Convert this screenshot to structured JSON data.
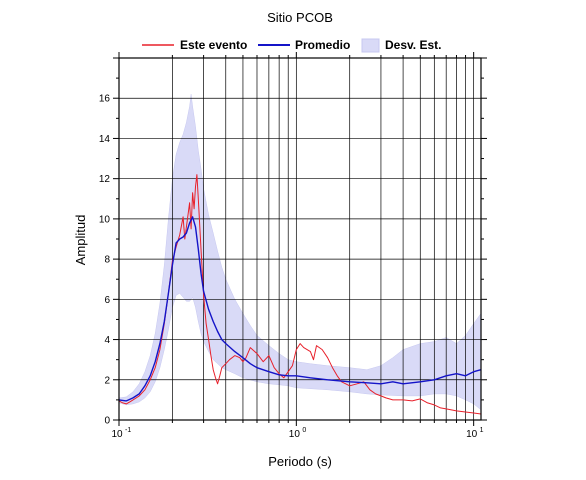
{
  "chart_data": {
    "type": "line",
    "title": "Sitio PCOB",
    "xlabel": "Periodo (s)",
    "ylabel": "Amplitud",
    "x_scale": "log",
    "xlim": [
      0.1,
      11.0
    ],
    "ylim": [
      0,
      18
    ],
    "grid": true,
    "legend_position": "top",
    "x_tick_labels": [
      {
        "value": 0.1,
        "base": "10",
        "exp": "-1"
      },
      {
        "value": 1,
        "base": "10",
        "exp": "0"
      },
      {
        "value": 10,
        "base": "10",
        "exp": "1"
      }
    ],
    "y_ticks": [
      "0",
      "2",
      "4",
      "6",
      "8",
      "10",
      "12",
      "14",
      "16"
    ],
    "y_tick_values": [
      0,
      2,
      4,
      6,
      8,
      10,
      12,
      14,
      16
    ],
    "colors": {
      "event": "#e8202a",
      "mean": "#1414c8",
      "band_fill": "#d9daf7",
      "band_edge": "#c7c8f0",
      "grid": "#000000"
    },
    "series": [
      {
        "name": "Este evento",
        "style": "line",
        "points": [
          [
            0.1,
            0.95
          ],
          [
            0.105,
            0.85
          ],
          [
            0.11,
            0.8
          ],
          [
            0.115,
            0.9
          ],
          [
            0.12,
            1.0
          ],
          [
            0.13,
            1.2
          ],
          [
            0.14,
            1.5
          ],
          [
            0.15,
            2.0
          ],
          [
            0.16,
            2.6
          ],
          [
            0.17,
            3.5
          ],
          [
            0.18,
            4.8
          ],
          [
            0.19,
            6.3
          ],
          [
            0.2,
            7.9
          ],
          [
            0.21,
            8.6
          ],
          [
            0.22,
            9.2
          ],
          [
            0.23,
            10.1
          ],
          [
            0.235,
            9.0
          ],
          [
            0.24,
            9.6
          ],
          [
            0.25,
            10.8
          ],
          [
            0.255,
            9.5
          ],
          [
            0.26,
            11.3
          ],
          [
            0.265,
            10.5
          ],
          [
            0.27,
            11.6
          ],
          [
            0.275,
            12.2
          ],
          [
            0.28,
            11.0
          ],
          [
            0.29,
            8.5
          ],
          [
            0.3,
            6.2
          ],
          [
            0.31,
            4.8
          ],
          [
            0.32,
            4.0
          ],
          [
            0.33,
            3.2
          ],
          [
            0.34,
            2.5
          ],
          [
            0.35,
            2.1
          ],
          [
            0.36,
            1.8
          ],
          [
            0.37,
            2.2
          ],
          [
            0.38,
            2.6
          ],
          [
            0.4,
            2.8
          ],
          [
            0.42,
            3.0
          ],
          [
            0.45,
            3.2
          ],
          [
            0.48,
            3.1
          ],
          [
            0.5,
            2.9
          ],
          [
            0.52,
            3.1
          ],
          [
            0.55,
            3.6
          ],
          [
            0.6,
            3.3
          ],
          [
            0.65,
            2.9
          ],
          [
            0.7,
            3.2
          ],
          [
            0.75,
            2.6
          ],
          [
            0.8,
            2.3
          ],
          [
            0.85,
            2.1
          ],
          [
            0.9,
            2.4
          ],
          [
            0.95,
            2.7
          ],
          [
            1.0,
            3.5
          ],
          [
            1.05,
            3.8
          ],
          [
            1.1,
            3.6
          ],
          [
            1.2,
            3.4
          ],
          [
            1.25,
            3.0
          ],
          [
            1.3,
            3.7
          ],
          [
            1.4,
            3.5
          ],
          [
            1.5,
            3.1
          ],
          [
            1.6,
            2.6
          ],
          [
            1.7,
            2.2
          ],
          [
            1.8,
            1.9
          ],
          [
            2.0,
            1.7
          ],
          [
            2.2,
            1.8
          ],
          [
            2.4,
            1.9
          ],
          [
            2.6,
            1.5
          ],
          [
            2.8,
            1.3
          ],
          [
            3.0,
            1.2
          ],
          [
            3.2,
            1.1
          ],
          [
            3.5,
            1.0
          ],
          [
            4.0,
            1.0
          ],
          [
            4.5,
            0.95
          ],
          [
            5.0,
            1.05
          ],
          [
            5.5,
            0.85
          ],
          [
            6.0,
            0.75
          ],
          [
            6.5,
            0.6
          ],
          [
            7.0,
            0.55
          ],
          [
            8.0,
            0.45
          ],
          [
            9.0,
            0.4
          ],
          [
            10.0,
            0.35
          ],
          [
            11.0,
            0.3
          ]
        ]
      },
      {
        "name": "Promedio",
        "style": "line",
        "points": [
          [
            0.1,
            1.0
          ],
          [
            0.11,
            0.95
          ],
          [
            0.12,
            1.1
          ],
          [
            0.13,
            1.3
          ],
          [
            0.14,
            1.7
          ],
          [
            0.15,
            2.2
          ],
          [
            0.16,
            2.9
          ],
          [
            0.17,
            3.8
          ],
          [
            0.18,
            4.9
          ],
          [
            0.19,
            6.3
          ],
          [
            0.2,
            7.7
          ],
          [
            0.21,
            8.8
          ],
          [
            0.22,
            9.0
          ],
          [
            0.23,
            9.1
          ],
          [
            0.24,
            9.3
          ],
          [
            0.25,
            9.8
          ],
          [
            0.26,
            10.1
          ],
          [
            0.27,
            9.6
          ],
          [
            0.28,
            8.5
          ],
          [
            0.29,
            7.3
          ],
          [
            0.3,
            6.4
          ],
          [
            0.32,
            5.5
          ],
          [
            0.34,
            4.9
          ],
          [
            0.36,
            4.4
          ],
          [
            0.38,
            4.0
          ],
          [
            0.4,
            3.8
          ],
          [
            0.45,
            3.4
          ],
          [
            0.5,
            3.1
          ],
          [
            0.55,
            2.8
          ],
          [
            0.6,
            2.6
          ],
          [
            0.7,
            2.4
          ],
          [
            0.8,
            2.25
          ],
          [
            0.9,
            2.2
          ],
          [
            1.0,
            2.2
          ],
          [
            1.2,
            2.1
          ],
          [
            1.5,
            2.0
          ],
          [
            2.0,
            1.9
          ],
          [
            2.5,
            1.85
          ],
          [
            3.0,
            1.8
          ],
          [
            3.5,
            1.9
          ],
          [
            4.0,
            1.8
          ],
          [
            5.0,
            1.9
          ],
          [
            6.0,
            2.0
          ],
          [
            7.0,
            2.2
          ],
          [
            8.0,
            2.3
          ],
          [
            9.0,
            2.2
          ],
          [
            10.0,
            2.4
          ],
          [
            11.0,
            2.5
          ]
        ]
      },
      {
        "name": "Desv. Est.",
        "style": "band",
        "upper": [
          [
            0.1,
            1.1
          ],
          [
            0.11,
            1.15
          ],
          [
            0.12,
            1.4
          ],
          [
            0.13,
            1.8
          ],
          [
            0.14,
            2.4
          ],
          [
            0.15,
            3.2
          ],
          [
            0.16,
            4.3
          ],
          [
            0.17,
            5.8
          ],
          [
            0.18,
            7.7
          ],
          [
            0.19,
            10.0
          ],
          [
            0.2,
            12.0
          ],
          [
            0.21,
            13.2
          ],
          [
            0.22,
            13.8
          ],
          [
            0.23,
            14.2
          ],
          [
            0.24,
            14.8
          ],
          [
            0.25,
            15.6
          ],
          [
            0.255,
            16.2
          ],
          [
            0.26,
            15.6
          ],
          [
            0.27,
            14.6
          ],
          [
            0.28,
            13.4
          ],
          [
            0.29,
            12.5
          ],
          [
            0.3,
            11.5
          ],
          [
            0.32,
            10.2
          ],
          [
            0.34,
            9.3
          ],
          [
            0.36,
            8.4
          ],
          [
            0.38,
            7.6
          ],
          [
            0.4,
            7.0
          ],
          [
            0.45,
            6.0
          ],
          [
            0.5,
            5.3
          ],
          [
            0.55,
            4.7
          ],
          [
            0.6,
            4.2
          ],
          [
            0.7,
            3.7
          ],
          [
            0.8,
            3.3
          ],
          [
            0.9,
            3.0
          ],
          [
            1.0,
            2.9
          ],
          [
            1.2,
            2.8
          ],
          [
            1.5,
            2.7
          ],
          [
            2.0,
            2.6
          ],
          [
            2.5,
            2.5
          ],
          [
            3.0,
            2.7
          ],
          [
            3.5,
            3.1
          ],
          [
            4.0,
            3.5
          ],
          [
            5.0,
            3.8
          ],
          [
            6.0,
            3.9
          ],
          [
            7.0,
            4.1
          ],
          [
            8.0,
            3.8
          ],
          [
            9.0,
            4.2
          ],
          [
            10.0,
            4.8
          ],
          [
            11.0,
            5.3
          ]
        ],
        "lower": [
          [
            0.1,
            0.85
          ],
          [
            0.11,
            0.75
          ],
          [
            0.12,
            0.8
          ],
          [
            0.13,
            0.9
          ],
          [
            0.14,
            1.1
          ],
          [
            0.15,
            1.4
          ],
          [
            0.16,
            1.9
          ],
          [
            0.17,
            2.6
          ],
          [
            0.18,
            3.5
          ],
          [
            0.19,
            4.5
          ],
          [
            0.2,
            5.6
          ],
          [
            0.21,
            6.2
          ],
          [
            0.22,
            6.3
          ],
          [
            0.23,
            6.1
          ],
          [
            0.24,
            5.9
          ],
          [
            0.25,
            5.9
          ],
          [
            0.26,
            6.1
          ],
          [
            0.27,
            5.6
          ],
          [
            0.28,
            4.9
          ],
          [
            0.29,
            4.3
          ],
          [
            0.3,
            3.9
          ],
          [
            0.32,
            3.4
          ],
          [
            0.34,
            3.0
          ],
          [
            0.36,
            2.8
          ],
          [
            0.38,
            2.6
          ],
          [
            0.4,
            2.5
          ],
          [
            0.45,
            2.3
          ],
          [
            0.5,
            2.1
          ],
          [
            0.6,
            1.9
          ],
          [
            0.7,
            1.8
          ],
          [
            0.8,
            1.75
          ],
          [
            0.9,
            1.7
          ],
          [
            1.0,
            1.6
          ],
          [
            1.5,
            1.5
          ],
          [
            2.0,
            1.4
          ],
          [
            2.5,
            1.3
          ],
          [
            3.0,
            1.25
          ],
          [
            4.0,
            1.2
          ],
          [
            5.0,
            1.2
          ],
          [
            6.0,
            1.3
          ],
          [
            7.0,
            1.3
          ],
          [
            8.0,
            1.2
          ],
          [
            9.0,
            1.0
          ],
          [
            10.0,
            0.8
          ],
          [
            11.0,
            0.5
          ]
        ]
      }
    ]
  }
}
